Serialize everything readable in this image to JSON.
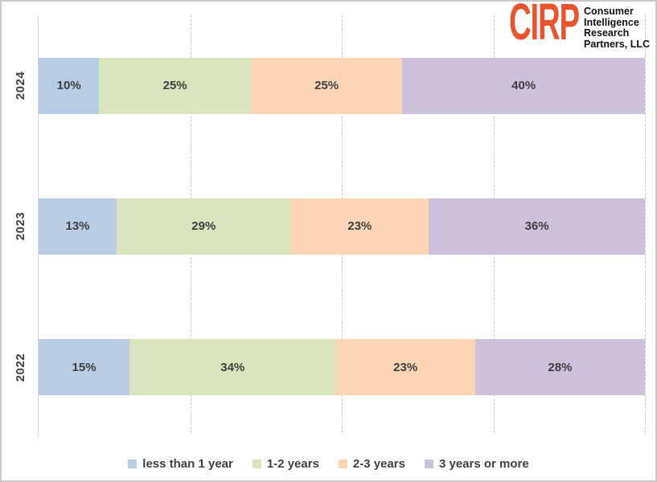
{
  "logo": {
    "brand": "CIRP",
    "brand_color": "#e8542e",
    "org_lines": [
      "Consumer",
      "Intelligence",
      "Research",
      "Partners, LLC"
    ]
  },
  "chart_data": {
    "type": "bar",
    "orientation": "horizontal",
    "stacked": true,
    "percent_stacked": true,
    "title": "",
    "xlabel": "",
    "ylabel": "",
    "xlim": [
      0,
      100
    ],
    "categories": [
      "2024",
      "2023",
      "2022"
    ],
    "series": [
      {
        "name": "less than 1 year",
        "color": "#b8cce4",
        "values": [
          10,
          13,
          15
        ]
      },
      {
        "name": "1-2 years",
        "color": "#d7e4bc",
        "values": [
          25,
          29,
          34
        ]
      },
      {
        "name": "2-3 years",
        "color": "#fcd5b4",
        "values": [
          25,
          23,
          23
        ]
      },
      {
        "name": "3 years or more",
        "color": "#ccc0da",
        "values": [
          40,
          36,
          28
        ]
      }
    ],
    "data_labels": [
      "10%",
      "25%",
      "25%",
      "40%",
      "13%",
      "29%",
      "23%",
      "36%",
      "15%",
      "34%",
      "23%",
      "28%"
    ],
    "value_suffix": "%",
    "gridlines_percent": [
      25,
      50,
      75,
      100
    ],
    "grid_style": "dashed-vertical",
    "legend_position": "bottom",
    "axis_line_side": "left"
  },
  "colors": {
    "label_text": "#404040",
    "gridline": "#c6c6c6",
    "axis_line": "#d6d6d6",
    "frame_border": "#c8c8c8",
    "background": "#ffffff"
  }
}
